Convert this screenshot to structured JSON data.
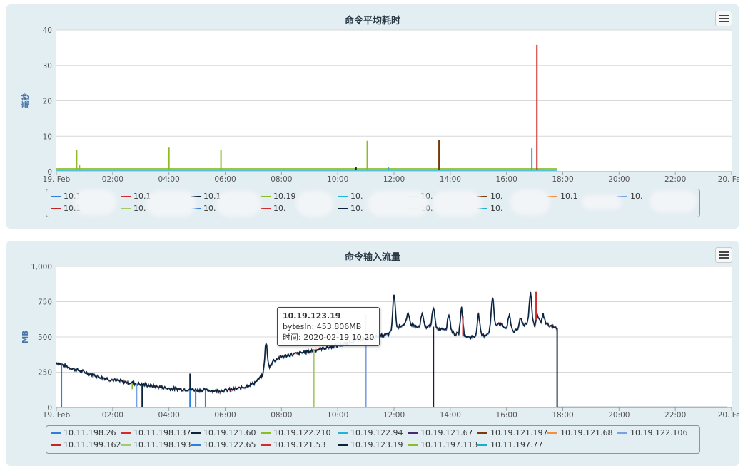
{
  "chart_data": [
    {
      "type": "line",
      "title": "命令平均耗时",
      "xlabel": "",
      "ylabel": "毫秒",
      "ylim": [
        0,
        40
      ],
      "y_ticks": [
        "0",
        "10",
        "20",
        "30",
        "40"
      ],
      "x_ticks": [
        "19. Feb",
        "02:00",
        "04:00",
        "06:00",
        "08:00",
        "10:00",
        "12:00",
        "14:00",
        "16:00",
        "18:00",
        "20:00",
        "22:00",
        "20. Feb"
      ],
      "x_range_hours": [
        0,
        24
      ],
      "data_end_hour": 17.8,
      "grid": true,
      "legend_position": "bottom",
      "baseline_value": 0.6,
      "series": [
        {
          "name": "10.1",
          "color": "#2f7ed8",
          "spikes": []
        },
        {
          "name": "10.1",
          "color": "#d42c2c",
          "spikes": [
            [
              17.08,
              35.8
            ]
          ]
        },
        {
          "name": "10.1",
          "color": "#0d233a",
          "spikes": [
            [
              10.65,
              1.2
            ]
          ]
        },
        {
          "name": "10.19",
          "color": "#8bbc21",
          "spikes": [
            [
              0.72,
              6.2
            ],
            [
              0.82,
              2.0
            ],
            [
              4.0,
              6.8
            ],
            [
              5.85,
              6.2
            ],
            [
              11.05,
              8.7
            ]
          ]
        },
        {
          "name": "10.",
          "color": "#1fb4d8",
          "spikes": [
            [
              11.8,
              1.4
            ]
          ]
        },
        {
          "name": "10.",
          "color": "#492970",
          "spikes": []
        },
        {
          "name": "10.",
          "color": "#7a3b0a",
          "spikes": [
            [
              13.6,
              9.0
            ]
          ]
        },
        {
          "name": "10.1",
          "color": "#f28f43",
          "spikes": []
        },
        {
          "name": "10.",
          "color": "#77a1e5",
          "spikes": []
        },
        {
          "name": "10.1",
          "color": "#c42525",
          "spikes": []
        },
        {
          "name": "10.",
          "color": "#a6c96a",
          "spikes": []
        },
        {
          "name": "10.",
          "color": "#2f7ed8",
          "spikes": []
        },
        {
          "name": "10.",
          "color": "#d42c2c",
          "spikes": []
        },
        {
          "name": "10.",
          "color": "#0d233a",
          "spikes": []
        },
        {
          "name": "10.",
          "color": "#8bbc21",
          "spikes": []
        },
        {
          "name": "10.",
          "color": "#1aadce",
          "spikes": [
            [
              16.9,
              6.6
            ]
          ]
        }
      ]
    },
    {
      "type": "line",
      "title": "命令输入流量",
      "xlabel": "",
      "ylabel": "MB",
      "ylim": [
        0,
        1000
      ],
      "y_ticks": [
        "0",
        "250",
        "500",
        "750",
        "1,000"
      ],
      "x_ticks": [
        "19. Feb",
        "02:00",
        "04:00",
        "06:00",
        "08:00",
        "10:00",
        "12:00",
        "14:00",
        "16:00",
        "18:00",
        "20:00",
        "22:00",
        "20. Feb"
      ],
      "x_range_hours": [
        0,
        24
      ],
      "data_end_hour": 17.8,
      "grid": true,
      "legend_position": "bottom",
      "main_curve": {
        "x": [
          0,
          0.5,
          1,
          1.5,
          2,
          2.5,
          3,
          3.5,
          4,
          4.5,
          5,
          5.5,
          6,
          6.5,
          7,
          7.3,
          7.5,
          7.7,
          8,
          8.5,
          9,
          9.5,
          10,
          10.33,
          10.5,
          11,
          11.5,
          11.8,
          12,
          12.2,
          12.5,
          12.8,
          13,
          13.3,
          13.6,
          13.8,
          14,
          14.2,
          14.4,
          14.6,
          15,
          15.3,
          15.5,
          15.7,
          16,
          16.3,
          16.5,
          16.7,
          17,
          17.1,
          17.2,
          17.5,
          17.8
        ],
        "y": [
          320,
          280,
          250,
          220,
          195,
          180,
          165,
          150,
          135,
          130,
          125,
          120,
          120,
          135,
          170,
          220,
          260,
          330,
          360,
          380,
          400,
          420,
          440,
          454,
          470,
          490,
          505,
          520,
          540,
          580,
          600,
          570,
          560,
          580,
          560,
          560,
          540,
          520,
          510,
          500,
          500,
          520,
          560,
          600,
          560,
          540,
          560,
          600,
          580,
          660,
          600,
          580,
          560
        ]
      },
      "peaks": [
        [
          7.45,
          460
        ],
        [
          12.0,
          800
        ],
        [
          12.5,
          660
        ],
        [
          13.0,
          660
        ],
        [
          13.4,
          700
        ],
        [
          13.95,
          660
        ],
        [
          14.4,
          700
        ],
        [
          15.0,
          660
        ],
        [
          15.5,
          780
        ],
        [
          16.1,
          650
        ],
        [
          16.5,
          640
        ],
        [
          16.85,
          810
        ],
        [
          17.3,
          660
        ]
      ],
      "drops": [
        [
          0.18,
          0,
          "#2f7ed8"
        ],
        [
          2.7,
          130,
          "#8bbc21"
        ],
        [
          2.85,
          0,
          "#77a1e5"
        ],
        [
          3.05,
          0,
          "#0d233a"
        ],
        [
          4.75,
          0,
          "#2f7ed8"
        ],
        [
          4.95,
          0,
          "#2f7ed8"
        ],
        [
          5.3,
          0,
          "#2f7ed8"
        ],
        [
          6.2,
          110,
          "#d42c2c"
        ],
        [
          9.15,
          0,
          "#a6c96a"
        ],
        [
          11.0,
          0,
          "#77a1e5"
        ],
        [
          13.4,
          0,
          "#0d233a"
        ]
      ],
      "spikes_up": [
        [
          4.75,
          240,
          "#0d233a"
        ],
        [
          10.35,
          490,
          "#1fb4d8"
        ],
        [
          11.0,
          660,
          "#77a1e5"
        ],
        [
          14.45,
          650,
          "#d42c2c"
        ],
        [
          17.05,
          820,
          "#d42c2c"
        ]
      ],
      "series": [
        {
          "name": "10.11.198.26",
          "color": "#2f7ed8"
        },
        {
          "name": "10.11.198.137",
          "color": "#d42c2c"
        },
        {
          "name": "10.19.121.60",
          "color": "#0d233a"
        },
        {
          "name": "10.19.122.210",
          "color": "#8bbc21"
        },
        {
          "name": "10.19.122.94",
          "color": "#1fb4d8"
        },
        {
          "name": "10.19.121.67",
          "color": "#492970"
        },
        {
          "name": "10.19.121.197",
          "color": "#7a3b0a"
        },
        {
          "name": "10.19.121.68",
          "color": "#f28f43"
        },
        {
          "name": "10.19.122.106",
          "color": "#77a1e5"
        },
        {
          "name": "10.11.199.162",
          "color": "#c42525"
        },
        {
          "name": "10.11.198.193",
          "color": "#a6c96a"
        },
        {
          "name": "10.19.122.65",
          "color": "#2f7ed8"
        },
        {
          "name": "10.19.121.53",
          "color": "#d42c2c"
        },
        {
          "name": "10.19.123.19",
          "color": "#0d233a"
        },
        {
          "name": "10.11.197.113",
          "color": "#8bbc21"
        },
        {
          "name": "10.11.197.77",
          "color": "#1aadce"
        }
      ],
      "tooltip": {
        "series": "10.19.123.19",
        "value_label": "bytesIn: 453.806MB",
        "time_label": "时间: 2020-02-19 10:20",
        "x_hour": 10.33,
        "y_value": 453.806
      }
    }
  ],
  "panels": [
    {
      "title": "命令平均耗时",
      "menu_icon": "hamburger-menu-icon"
    },
    {
      "title": "命令输入流量",
      "menu_icon": "hamburger-menu-icon"
    }
  ]
}
